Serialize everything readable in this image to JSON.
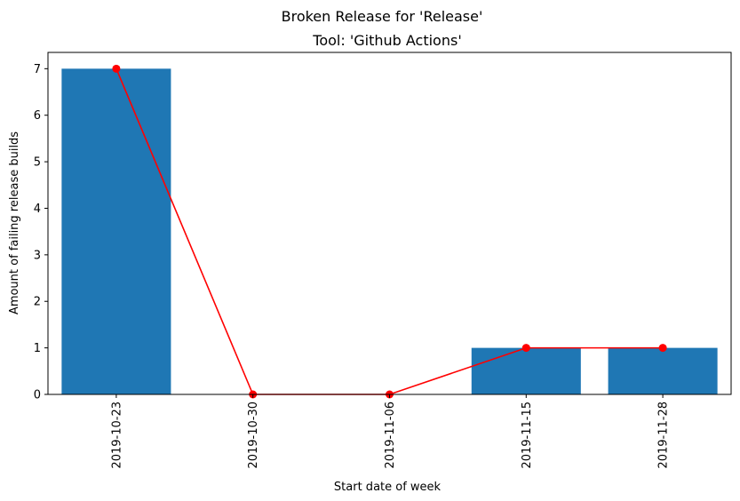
{
  "suptitle": "Broken Release for 'Release'",
  "chart_data": {
    "type": "bar",
    "title": "Tool: 'Github Actions'",
    "xlabel": "Start date of week",
    "ylabel": "Amount of failing release builds",
    "categories": [
      "2019-10-23",
      "2019-10-30",
      "2019-11-06",
      "2019-11-15",
      "2019-11-28"
    ],
    "series": [
      {
        "type": "bar",
        "values": [
          7,
          0,
          0,
          1,
          1
        ],
        "color": "#1f77b4"
      },
      {
        "type": "line",
        "values": [
          7,
          0,
          0,
          1,
          1
        ],
        "color": "#ff0000",
        "marker": "circle"
      }
    ],
    "ylim": [
      0,
      7.35
    ],
    "yticks": [
      0,
      1,
      2,
      3,
      4,
      5,
      6,
      7
    ],
    "grid": false,
    "legend": "none"
  }
}
